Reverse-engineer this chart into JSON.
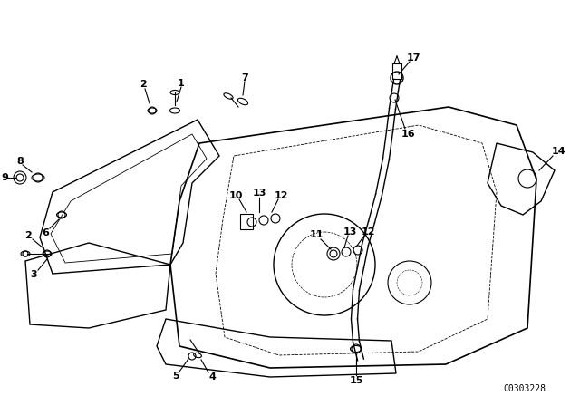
{
  "background_color": "#ffffff",
  "line_color": "#000000",
  "diagram_code": "C0303228",
  "fig_width": 6.4,
  "fig_height": 4.48,
  "dpi": 100
}
